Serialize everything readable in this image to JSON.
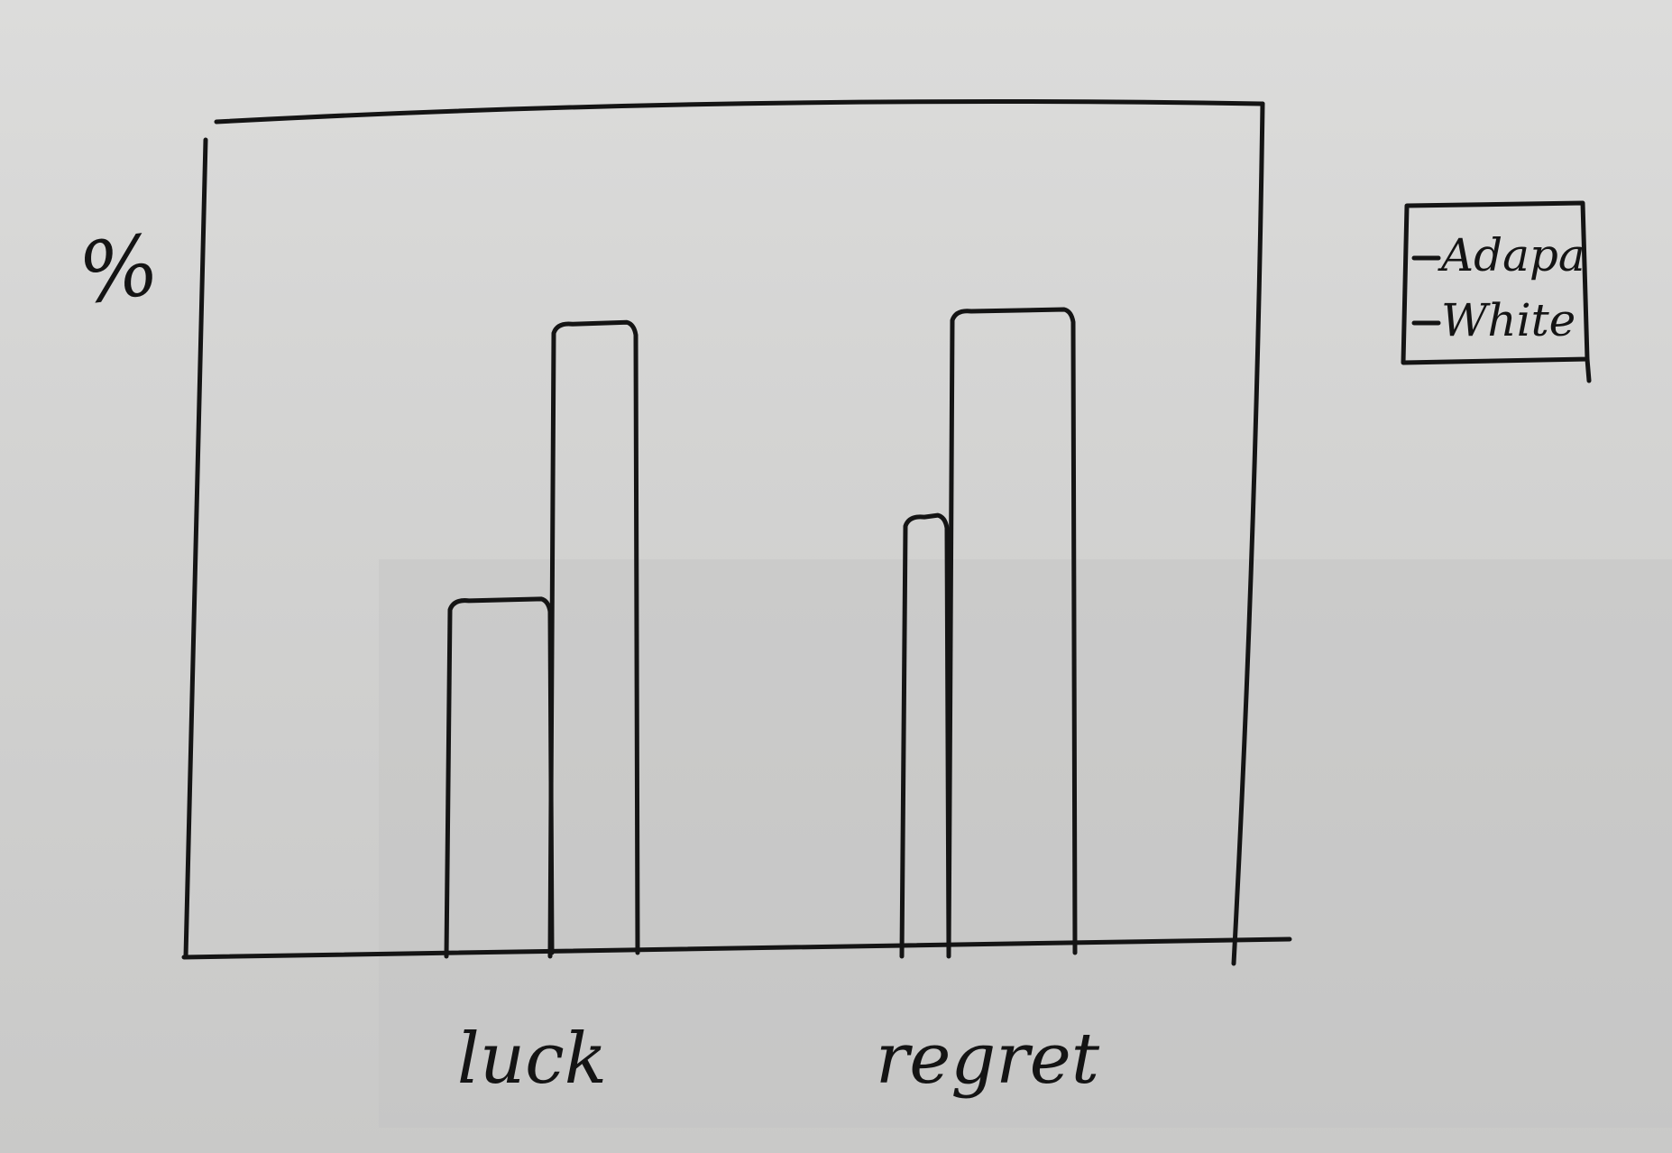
{
  "chart_data": {
    "type": "bar",
    "title": "",
    "xlabel": "",
    "ylabel": "%",
    "categories": [
      "luck",
      "regret"
    ],
    "series": [
      {
        "name": "Adapa",
        "values": [
          55,
          68
        ]
      },
      {
        "name": "White",
        "values": [
          98,
          100
        ]
      }
    ],
    "ylim": [
      0,
      100
    ],
    "grid": false,
    "legend": "top-right"
  },
  "colors": {
    "ink": "#141414",
    "paper": "#d4d4d3"
  }
}
